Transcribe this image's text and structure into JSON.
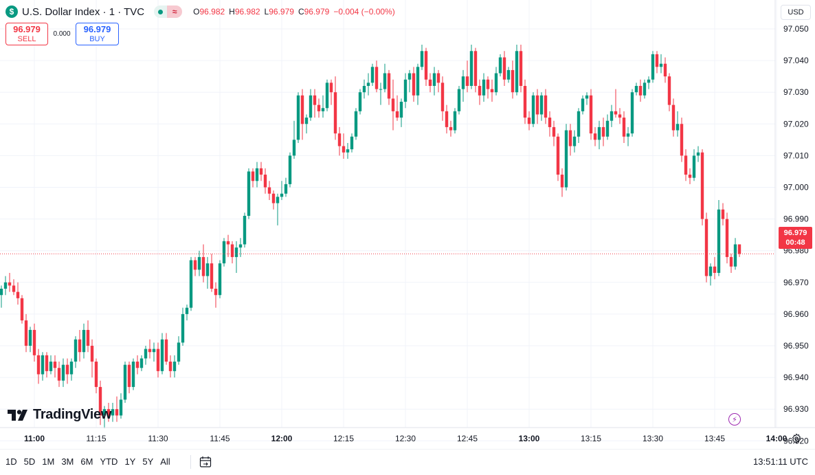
{
  "header": {
    "symbol_logo": "$",
    "title": "U.S. Dollar Index · 1 · TVC",
    "status_icon": "market-open-dot",
    "feed_icon": "≈",
    "ohlc": {
      "o_label": "O",
      "o": "96.982",
      "h_label": "H",
      "h": "96.982",
      "l_label": "L",
      "l": "96.979",
      "c_label": "C",
      "c": "96.979",
      "change": "−0.004 (−0.00%)"
    }
  },
  "trade": {
    "sell_price": "96.979",
    "sell_label": "SELL",
    "spread": "0.000",
    "buy_price": "96.979",
    "buy_label": "BUY"
  },
  "currency": "USD",
  "logo_text": "TradingView",
  "last_price_tag": {
    "price": "96.979",
    "countdown": "00:48"
  },
  "range_buttons": [
    "1D",
    "5D",
    "1M",
    "3M",
    "6M",
    "YTD",
    "1Y",
    "5Y",
    "All"
  ],
  "clock": "13:51:11 UTC",
  "colors": {
    "up": "#089981",
    "down": "#f23645",
    "grid": "#f0f3fa",
    "text": "#131722"
  },
  "chart_data": {
    "type": "candlestick",
    "y_ticks": [
      "96.920",
      "96.930",
      "96.940",
      "96.950",
      "96.960",
      "96.970",
      "96.980",
      "96.990",
      "97.000",
      "97.010",
      "97.020",
      "97.030",
      "97.040",
      "97.050"
    ],
    "ylim": [
      96.914,
      97.053
    ],
    "x_ticks": [
      {
        "label": "11:00",
        "minute": 0,
        "bold": true
      },
      {
        "label": "11:15",
        "minute": 15
      },
      {
        "label": "11:30",
        "minute": 30
      },
      {
        "label": "11:45",
        "minute": 45
      },
      {
        "label": "12:00",
        "minute": 60,
        "bold": true
      },
      {
        "label": "12:15",
        "minute": 75
      },
      {
        "label": "12:30",
        "minute": 90
      },
      {
        "label": "12:45",
        "minute": 105
      },
      {
        "label": "13:00",
        "minute": 120,
        "bold": true
      },
      {
        "label": "13:15",
        "minute": 135
      },
      {
        "label": "13:30",
        "minute": 150
      },
      {
        "label": "13:45",
        "minute": 165
      },
      {
        "label": "14:00",
        "minute": 180,
        "bold": true
      }
    ],
    "last_price": 96.979,
    "candles_ohlc": [
      [
        96.966,
        96.969,
        96.962,
        96.968
      ],
      [
        96.968,
        96.972,
        96.966,
        96.97
      ],
      [
        96.97,
        96.973,
        96.967,
        96.969
      ],
      [
        96.969,
        96.971,
        96.966,
        96.967
      ],
      [
        96.967,
        96.97,
        96.963,
        96.965
      ],
      [
        96.965,
        96.966,
        96.957,
        96.958
      ],
      [
        96.958,
        96.96,
        96.948,
        96.95
      ],
      [
        96.95,
        96.956,
        96.948,
        96.955
      ],
      [
        96.955,
        96.957,
        96.945,
        96.947
      ],
      [
        96.947,
        96.949,
        96.938,
        96.941
      ],
      [
        96.941,
        96.948,
        96.939,
        96.947
      ],
      [
        96.947,
        96.948,
        96.94,
        96.942
      ],
      [
        96.942,
        96.947,
        96.941,
        96.945
      ],
      [
        96.945,
        96.947,
        96.94,
        96.943
      ],
      [
        96.943,
        96.945,
        96.937,
        96.939
      ],
      [
        96.939,
        96.946,
        96.937,
        96.944
      ],
      [
        96.944,
        96.946,
        96.938,
        96.941
      ],
      [
        96.941,
        96.946,
        96.939,
        96.945
      ],
      [
        96.945,
        96.953,
        96.943,
        96.952
      ],
      [
        96.952,
        96.955,
        96.945,
        96.948
      ],
      [
        96.948,
        96.957,
        96.946,
        96.955
      ],
      [
        96.955,
        96.958,
        96.948,
        96.95
      ],
      [
        96.95,
        96.952,
        96.94,
        96.945
      ],
      [
        96.945,
        96.946,
        96.935,
        96.937
      ],
      [
        96.937,
        96.939,
        96.925,
        96.928
      ],
      [
        96.928,
        96.931,
        96.924,
        96.93
      ],
      [
        96.93,
        96.932,
        96.926,
        96.928
      ],
      [
        96.928,
        96.932,
        96.926,
        96.93
      ],
      [
        96.93,
        96.934,
        96.926,
        96.928
      ],
      [
        96.928,
        96.935,
        96.927,
        96.933
      ],
      [
        96.933,
        96.945,
        96.932,
        96.944
      ],
      [
        96.944,
        96.945,
        96.935,
        96.937
      ],
      [
        96.937,
        96.946,
        96.936,
        96.945
      ],
      [
        96.945,
        96.947,
        96.941,
        96.943
      ],
      [
        96.943,
        96.947,
        96.942,
        96.946
      ],
      [
        96.946,
        96.95,
        96.944,
        96.949
      ],
      [
        96.949,
        96.952,
        96.946,
        96.948
      ],
      [
        96.948,
        96.951,
        96.945,
        96.949
      ],
      [
        96.949,
        96.951,
        96.94,
        96.942
      ],
      [
        96.942,
        96.954,
        96.941,
        96.952
      ],
      [
        96.952,
        96.954,
        96.944,
        96.945
      ],
      [
        96.945,
        96.947,
        96.94,
        96.942
      ],
      [
        96.942,
        96.947,
        96.94,
        96.945
      ],
      [
        96.945,
        96.953,
        96.944,
        96.951
      ],
      [
        96.951,
        96.962,
        96.95,
        96.96
      ],
      [
        96.96,
        96.963,
        96.958,
        96.962
      ],
      [
        96.962,
        96.978,
        96.961,
        96.977
      ],
      [
        96.977,
        96.978,
        96.972,
        96.974
      ],
      [
        96.974,
        96.98,
        96.972,
        96.978
      ],
      [
        96.978,
        96.982,
        96.97,
        96.972
      ],
      [
        96.972,
        96.978,
        96.968,
        96.976
      ],
      [
        96.976,
        96.979,
        96.967,
        96.968
      ],
      [
        96.968,
        96.97,
        96.962,
        96.966
      ],
      [
        96.966,
        96.977,
        96.965,
        96.976
      ],
      [
        96.976,
        96.984,
        96.975,
        96.983
      ],
      [
        96.983,
        96.985,
        96.978,
        96.982
      ],
      [
        96.982,
        96.983,
        96.976,
        96.978
      ],
      [
        96.978,
        96.983,
        96.973,
        96.981
      ],
      [
        96.981,
        96.984,
        96.978,
        96.982
      ],
      [
        96.982,
        96.992,
        96.981,
        96.991
      ],
      [
        96.991,
        97.006,
        96.99,
        97.005
      ],
      [
        97.005,
        97.006,
        97.0,
        97.002
      ],
      [
        97.002,
        97.008,
        97.0,
        97.006
      ],
      [
        97.006,
        97.008,
        97.002,
        97.004
      ],
      [
        97.004,
        97.006,
        96.998,
        97.0
      ],
      [
        97.0,
        97.002,
        96.996,
        96.998
      ],
      [
        96.998,
        96.999,
        96.993,
        96.995
      ],
      [
        96.995,
        96.998,
        96.988,
        96.997
      ],
      [
        96.997,
        97.002,
        96.996,
        96.998
      ],
      [
        96.998,
        97.003,
        96.997,
        97.001
      ],
      [
        97.001,
        97.011,
        97.0,
        97.01
      ],
      [
        97.01,
        97.021,
        97.009,
        97.015
      ],
      [
        97.015,
        97.03,
        97.014,
        97.029
      ],
      [
        97.029,
        97.031,
        97.015,
        97.02
      ],
      [
        97.02,
        97.023,
        97.017,
        97.022
      ],
      [
        97.022,
        97.031,
        97.021,
        97.029
      ],
      [
        97.029,
        97.031,
        97.022,
        97.026
      ],
      [
        97.026,
        97.028,
        97.022,
        97.024
      ],
      [
        97.024,
        97.029,
        97.022,
        97.025
      ],
      [
        97.025,
        97.034,
        97.024,
        97.033
      ],
      [
        97.033,
        97.034,
        97.026,
        97.03
      ],
      [
        97.03,
        97.035,
        97.015,
        97.017
      ],
      [
        97.017,
        97.019,
        97.01,
        97.013
      ],
      [
        97.013,
        97.017,
        97.009,
        97.011
      ],
      [
        97.011,
        97.014,
        97.009,
        97.012
      ],
      [
        97.012,
        97.017,
        97.011,
        97.016
      ],
      [
        97.016,
        97.025,
        97.015,
        97.024
      ],
      [
        97.024,
        97.031,
        97.023,
        97.03
      ],
      [
        97.03,
        97.034,
        97.028,
        97.032
      ],
      [
        97.032,
        97.036,
        97.029,
        97.033
      ],
      [
        97.033,
        97.039,
        97.032,
        97.038
      ],
      [
        97.038,
        97.04,
        97.03,
        97.031
      ],
      [
        97.031,
        97.033,
        97.026,
        97.031
      ],
      [
        97.031,
        97.039,
        97.03,
        97.036
      ],
      [
        97.036,
        97.037,
        97.026,
        97.028
      ],
      [
        97.028,
        97.034,
        97.018,
        97.024
      ],
      [
        97.024,
        97.029,
        97.021,
        97.022
      ],
      [
        97.022,
        97.028,
        97.019,
        97.027
      ],
      [
        97.027,
        97.036,
        97.025,
        97.034
      ],
      [
        97.034,
        97.037,
        97.03,
        97.036
      ],
      [
        97.036,
        97.038,
        97.027,
        97.029
      ],
      [
        97.029,
        97.039,
        97.026,
        97.038
      ],
      [
        97.038,
        97.045,
        97.037,
        97.043
      ],
      [
        97.043,
        97.044,
        97.032,
        97.034
      ],
      [
        97.034,
        97.036,
        97.03,
        97.032
      ],
      [
        97.032,
        97.038,
        97.029,
        97.036
      ],
      [
        97.036,
        97.037,
        97.03,
        97.033
      ],
      [
        97.033,
        97.035,
        97.021,
        97.024
      ],
      [
        97.024,
        97.026,
        97.017,
        97.019
      ],
      [
        97.019,
        97.021,
        97.016,
        97.018
      ],
      [
        97.018,
        97.025,
        97.017,
        97.024
      ],
      [
        97.024,
        97.032,
        97.023,
        97.031
      ],
      [
        97.031,
        97.037,
        97.027,
        97.035
      ],
      [
        97.035,
        97.04,
        97.03,
        97.032
      ],
      [
        97.032,
        97.045,
        97.031,
        97.043
      ],
      [
        97.043,
        97.044,
        97.03,
        97.032
      ],
      [
        97.032,
        97.034,
        97.026,
        97.029
      ],
      [
        97.029,
        97.036,
        97.027,
        97.034
      ],
      [
        97.034,
        97.035,
        97.028,
        97.031
      ],
      [
        97.031,
        97.034,
        97.027,
        97.03
      ],
      [
        97.03,
        97.038,
        97.029,
        97.036
      ],
      [
        97.036,
        97.042,
        97.035,
        97.041
      ],
      [
        97.041,
        97.043,
        97.032,
        97.034
      ],
      [
        97.034,
        97.038,
        97.033,
        97.037
      ],
      [
        97.037,
        97.04,
        97.028,
        97.03
      ],
      [
        97.03,
        97.045,
        97.029,
        97.043
      ],
      [
        97.043,
        97.045,
        97.03,
        97.032
      ],
      [
        97.032,
        97.034,
        97.02,
        97.022
      ],
      [
        97.022,
        97.024,
        97.018,
        97.02
      ],
      [
        97.02,
        97.03,
        97.019,
        97.029
      ],
      [
        97.029,
        97.031,
        97.02,
        97.023
      ],
      [
        97.023,
        97.03,
        97.021,
        97.029
      ],
      [
        97.029,
        97.031,
        97.02,
        97.022
      ],
      [
        97.022,
        97.024,
        97.016,
        97.019
      ],
      [
        97.019,
        97.021,
        97.013,
        97.016
      ],
      [
        97.016,
        97.017,
        97.002,
        97.004
      ],
      [
        97.004,
        97.006,
        96.997,
        97.0
      ],
      [
        97.0,
        97.02,
        96.999,
        97.018
      ],
      [
        97.018,
        97.02,
        97.01,
        97.013
      ],
      [
        97.013,
        97.018,
        97.011,
        97.016
      ],
      [
        97.016,
        97.025,
        97.014,
        97.024
      ],
      [
        97.024,
        97.029,
        97.023,
        97.028
      ],
      [
        97.028,
        97.03,
        97.026,
        97.029
      ],
      [
        97.029,
        97.031,
        97.015,
        97.017
      ],
      [
        97.017,
        97.019,
        97.013,
        97.015
      ],
      [
        97.015,
        97.021,
        97.012,
        97.019
      ],
      [
        97.019,
        97.022,
        97.013,
        97.016
      ],
      [
        97.016,
        97.023,
        97.015,
        97.021
      ],
      [
        97.021,
        97.026,
        97.019,
        97.024
      ],
      [
        97.024,
        97.031,
        97.022,
        97.023
      ],
      [
        97.023,
        97.025,
        97.02,
        97.022
      ],
      [
        97.022,
        97.024,
        97.014,
        97.016
      ],
      [
        97.016,
        97.019,
        97.013,
        97.017
      ],
      [
        97.017,
        97.031,
        97.016,
        97.03
      ],
      [
        97.03,
        97.033,
        97.029,
        97.032
      ],
      [
        97.032,
        97.034,
        97.027,
        97.029
      ],
      [
        97.029,
        97.034,
        97.028,
        97.033
      ],
      [
        97.033,
        97.035,
        97.031,
        97.034
      ],
      [
        97.034,
        97.043,
        97.033,
        97.042
      ],
      [
        97.042,
        97.043,
        97.036,
        97.038
      ],
      [
        97.038,
        97.042,
        97.036,
        97.039
      ],
      [
        97.039,
        97.041,
        97.033,
        97.035
      ],
      [
        97.035,
        97.036,
        97.024,
        97.026
      ],
      [
        97.026,
        97.028,
        97.016,
        97.018
      ],
      [
        97.018,
        97.024,
        97.016,
        97.02
      ],
      [
        97.02,
        97.022,
        97.008,
        97.01
      ],
      [
        97.01,
        97.012,
        97.002,
        97.004
      ],
      [
        97.004,
        97.006,
        97.001,
        97.003
      ],
      [
        97.003,
        97.012,
        97.002,
        97.01
      ],
      [
        97.01,
        97.013,
        97.008,
        97.011
      ],
      [
        97.011,
        97.012,
        96.988,
        96.99
      ],
      [
        96.99,
        96.992,
        96.97,
        96.972
      ],
      [
        96.972,
        96.976,
        96.969,
        96.975
      ],
      [
        96.975,
        96.978,
        96.971,
        96.973
      ],
      [
        96.973,
        96.996,
        96.972,
        96.993
      ],
      [
        96.993,
        96.995,
        96.988,
        96.99
      ],
      [
        96.99,
        96.992,
        96.976,
        96.978
      ],
      [
        96.978,
        96.979,
        96.973,
        96.975
      ],
      [
        96.975,
        96.984,
        96.974,
        96.982
      ],
      [
        96.982,
        96.982,
        96.978,
        96.979
      ]
    ]
  }
}
